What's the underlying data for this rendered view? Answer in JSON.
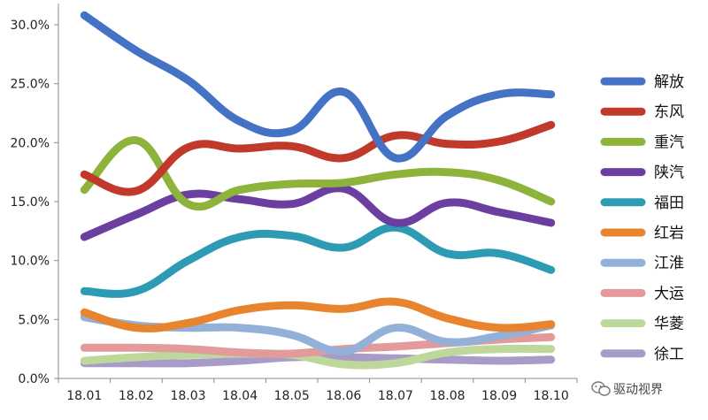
{
  "chart_data": {
    "type": "line",
    "categories": [
      "18.01",
      "18.02",
      "18.03",
      "18.04",
      "18.05",
      "18.06",
      "18.07",
      "18.08",
      "18.09",
      "18.10"
    ],
    "ylim": [
      0,
      30
    ],
    "yticks": [
      0,
      5,
      10,
      15,
      20,
      25,
      30
    ],
    "ytick_labels": [
      "0.0%",
      "5.0%",
      "10.0%",
      "15.0%",
      "20.0%",
      "25.0%",
      "30.0%"
    ],
    "y_unit": "%",
    "grid": false,
    "legend_position": "right",
    "series": [
      {
        "name": "解放",
        "color": "#4472C4",
        "values": [
          30.8,
          27.8,
          25.3,
          21.8,
          21.0,
          24.3,
          18.7,
          22.3,
          24.1,
          24.1
        ]
      },
      {
        "name": "东风",
        "color": "#C0392B",
        "values": [
          17.3,
          15.9,
          19.6,
          19.5,
          19.7,
          18.7,
          20.6,
          19.9,
          20.1,
          21.5
        ]
      },
      {
        "name": "重汽",
        "color": "#8DB33A",
        "values": [
          16.0,
          20.2,
          14.8,
          16.0,
          16.5,
          16.6,
          17.3,
          17.5,
          16.8,
          15.0
        ]
      },
      {
        "name": "陕汽",
        "color": "#6B3FA0",
        "values": [
          12.0,
          13.9,
          15.6,
          15.2,
          14.8,
          16.1,
          13.2,
          14.9,
          14.1,
          13.2
        ]
      },
      {
        "name": "福田",
        "color": "#2E9BB5",
        "values": [
          7.4,
          7.4,
          10.0,
          12.0,
          12.1,
          11.1,
          12.8,
          10.6,
          10.6,
          9.2
        ]
      },
      {
        "name": "红岩",
        "color": "#E8832E",
        "values": [
          5.6,
          4.3,
          4.7,
          5.8,
          6.2,
          5.9,
          6.5,
          5.1,
          4.3,
          4.6
        ]
      },
      {
        "name": "江淮",
        "color": "#92B0D8",
        "values": [
          5.2,
          4.5,
          4.3,
          4.3,
          3.7,
          2.3,
          4.3,
          3.1,
          3.6,
          4.5
        ]
      },
      {
        "name": "大运",
        "color": "#E39A9A",
        "values": [
          2.6,
          2.6,
          2.5,
          2.2,
          2.1,
          2.5,
          2.7,
          3.0,
          3.3,
          3.5
        ]
      },
      {
        "name": "华菱",
        "color": "#BDD89A",
        "values": [
          1.5,
          1.8,
          2.0,
          2.1,
          2.0,
          1.2,
          1.3,
          2.2,
          2.5,
          2.5
        ]
      },
      {
        "name": "徐工",
        "color": "#A89BC8",
        "values": [
          1.3,
          1.3,
          1.3,
          1.5,
          1.8,
          1.8,
          1.7,
          1.6,
          1.5,
          1.6
        ]
      }
    ]
  },
  "watermark": {
    "text": "驱动视界",
    "icon": "wechat-icon"
  }
}
